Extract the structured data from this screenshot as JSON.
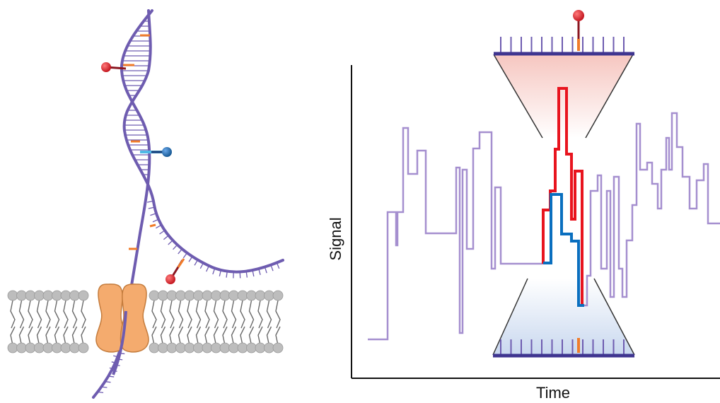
{
  "axes": {
    "xlabel": "Time",
    "ylabel": "Signal"
  },
  "colors": {
    "strand": "#6e5cb0",
    "trace": "#a58fcf",
    "lipid_head": "#bdbdbd",
    "lipid_tail": "#6a6a6a",
    "pore": "#f4ab6e",
    "pore_edge": "#c47c3d",
    "base_orange": "#f07c2a",
    "probe_red": "#d8202b",
    "probe_blue": "#1f6fb8",
    "zoom_red": "#e8141e",
    "zoom_blue": "#0a6fbf"
  },
  "icons": [
    "dna-strand-icon",
    "nanopore-icon",
    "membrane-icon",
    "red-probe-icon",
    "blue-probe-icon"
  ]
}
